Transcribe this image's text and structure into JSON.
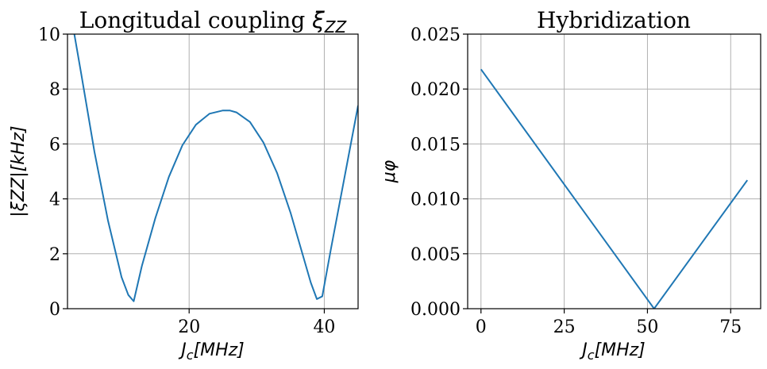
{
  "chart_data": [
    {
      "type": "line",
      "title": "Longitudal coupling ",
      "title_symbol": "ξ",
      "title_subscript": "ZZ",
      "xlabel_main": "J",
      "xlabel_sub": "c",
      "xlabel_rest": "[MHz]",
      "ylabel_text": "|ξZZ|[kHz]",
      "xlim": [
        2,
        45
      ],
      "ylim": [
        0,
        10
      ],
      "xticks": [
        20,
        40
      ],
      "yticks": [
        0,
        2,
        4,
        6,
        8,
        10
      ],
      "grid": true,
      "color": "#1f77b4",
      "series": [
        {
          "x": [
            2.8,
            4,
            6,
            8,
            10,
            11,
            11.8,
            13,
            15,
            17,
            19,
            21,
            23,
            25,
            26,
            27,
            29,
            31,
            33,
            35,
            37,
            38,
            38.9,
            39.7,
            41,
            43,
            45
          ],
          "y": [
            10.3,
            8.6,
            5.7,
            3.2,
            1.15,
            0.5,
            0.27,
            1.55,
            3.3,
            4.8,
            5.95,
            6.7,
            7.1,
            7.22,
            7.22,
            7.15,
            6.8,
            6.05,
            4.95,
            3.5,
            1.8,
            0.95,
            0.35,
            0.45,
            2.2,
            4.8,
            7.4
          ]
        }
      ]
    },
    {
      "type": "line",
      "title": "Hybridization",
      "xlabel_main": "J",
      "xlabel_sub": "c",
      "xlabel_rest": "[MHz]",
      "ylabel_text": "μφ",
      "xlim": [
        -4,
        84
      ],
      "ylim": [
        0,
        0.025
      ],
      "xticks": [
        0,
        25,
        50,
        75
      ],
      "yticks": [
        "0.000",
        "0.005",
        "0.010",
        "0.015",
        "0.020",
        "0.025"
      ],
      "grid": true,
      "color": "#1f77b4",
      "series": [
        {
          "x": [
            0,
            52,
            80
          ],
          "y": [
            0.0218,
            0.0,
            0.0117
          ]
        }
      ]
    }
  ]
}
